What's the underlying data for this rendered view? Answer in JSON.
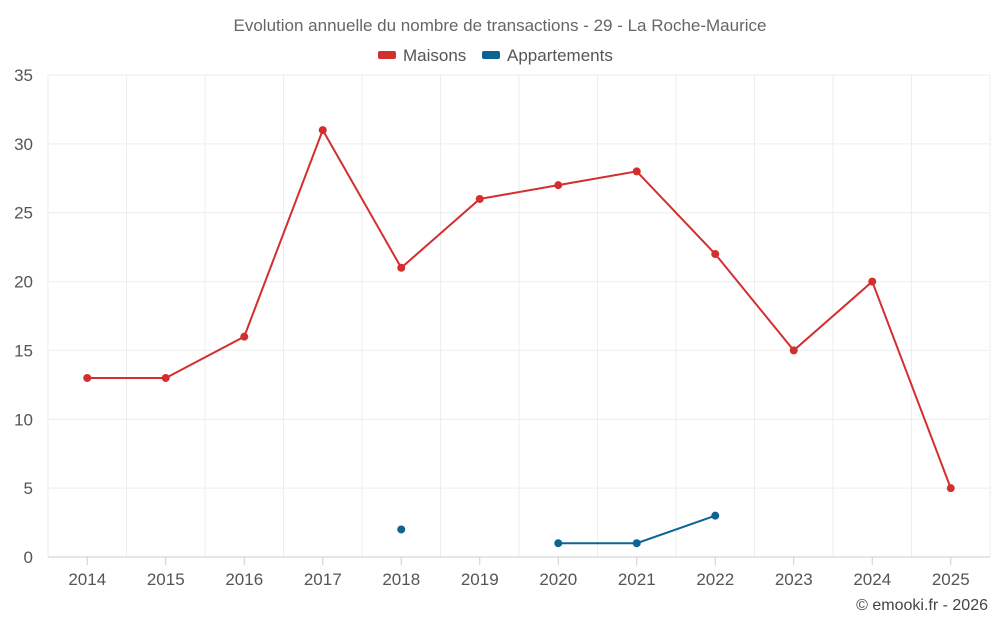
{
  "chart_data": {
    "type": "line",
    "title": "Evolution annuelle du nombre de transactions - 29 - La Roche-Maurice",
    "categories": [
      "2014",
      "2015",
      "2016",
      "2017",
      "2018",
      "2019",
      "2020",
      "2021",
      "2022",
      "2023",
      "2024",
      "2025"
    ],
    "series": [
      {
        "name": "Maisons",
        "color": "#d32f2f",
        "values": [
          13,
          13,
          16,
          31,
          21,
          26,
          27,
          28,
          22,
          15,
          20,
          5
        ]
      },
      {
        "name": "Appartements",
        "color": "#0d6494",
        "values": [
          null,
          null,
          null,
          null,
          2,
          null,
          1,
          1,
          3,
          null,
          null,
          null
        ]
      }
    ],
    "ylim": [
      0,
      35
    ],
    "yticks": [
      "0",
      "5",
      "10",
      "15",
      "20",
      "25",
      "30",
      "35"
    ],
    "xlabel": "",
    "ylabel": "",
    "grid": true,
    "legend_position": "top-center"
  },
  "credit": "© emooki.fr - 2026"
}
